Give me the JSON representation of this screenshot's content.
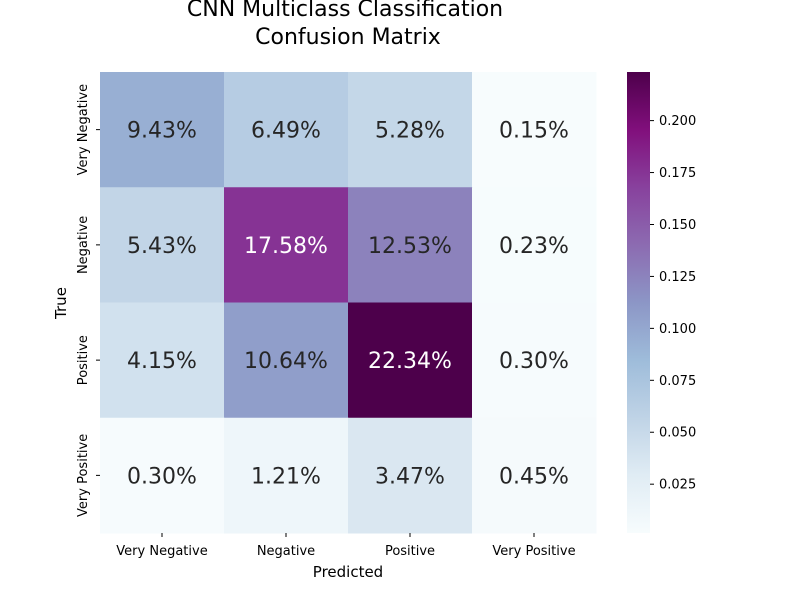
{
  "chart_data": {
    "type": "heatmap",
    "title_lines": [
      "CNN Multiclass Classification",
      "Confusion Matrix"
    ],
    "xlabel": "Predicted",
    "ylabel": "True",
    "x_categories": [
      "Very Negative",
      "Negative",
      "Positive",
      "Very Positive"
    ],
    "y_categories": [
      "Very Negative",
      "Negative",
      "Positive",
      "Very Positive"
    ],
    "values": [
      [
        0.0943,
        0.0649,
        0.0528,
        0.0015
      ],
      [
        0.0543,
        0.1758,
        0.1253,
        0.0023
      ],
      [
        0.0415,
        0.1064,
        0.2234,
        0.003
      ],
      [
        0.003,
        0.0121,
        0.0347,
        0.0045
      ]
    ],
    "cell_labels": [
      [
        "9.43%",
        "6.49%",
        "5.28%",
        "0.15%"
      ],
      [
        "5.43%",
        "17.58%",
        "12.53%",
        "0.23%"
      ],
      [
        "4.15%",
        "10.64%",
        "22.34%",
        "0.30%"
      ],
      [
        "0.30%",
        "1.21%",
        "3.47%",
        "0.45%"
      ]
    ],
    "colormap": "BuPu",
    "colorbar": {
      "min": 0.0015,
      "max": 0.2234,
      "ticks": [
        0.025,
        0.05,
        0.075,
        0.1,
        0.125,
        0.15,
        0.175,
        0.2
      ],
      "tick_labels": [
        "0.025",
        "0.050",
        "0.075",
        "0.100",
        "0.125",
        "0.150",
        "0.175",
        "0.200"
      ]
    }
  }
}
